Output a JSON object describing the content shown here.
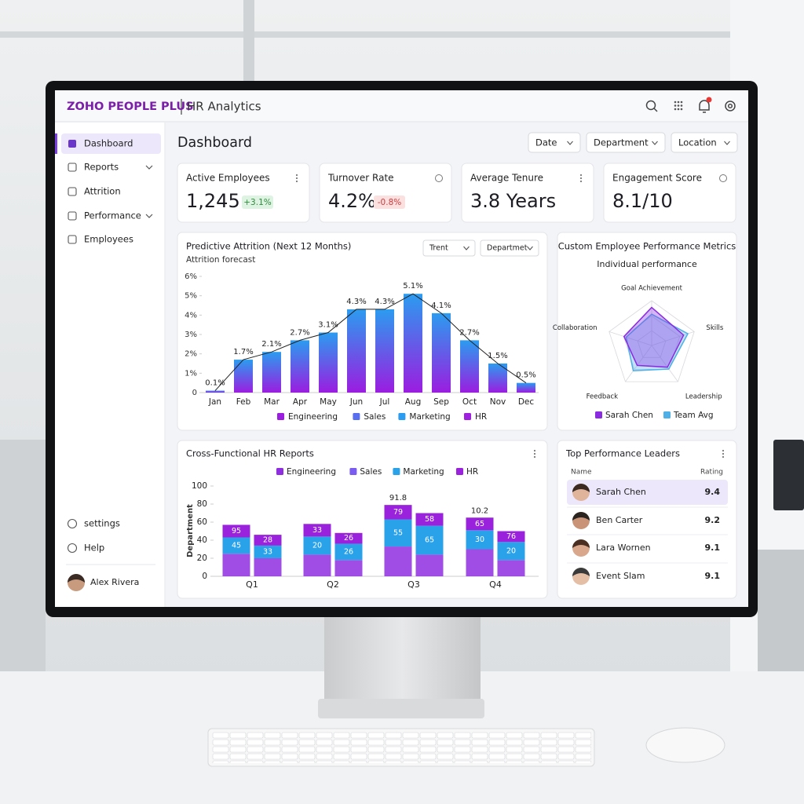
{
  "header": {
    "brand": "ZOHO PEOPLE PLUS",
    "product": "HR Analytics"
  },
  "sidebar": {
    "items": [
      "Dashboard",
      "Reports",
      "Attrition",
      "Performance",
      "Employees"
    ],
    "footer": [
      "settings",
      "Help"
    ],
    "user": "Alex Rivera"
  },
  "page": {
    "title": "Dashboard",
    "filters": [
      "Date",
      "Department",
      "Location"
    ]
  },
  "kpis": [
    {
      "label": "Active Employees",
      "value": "1,245",
      "delta": "+3.1%"
    },
    {
      "label": "Turnover Rate",
      "value": "4.2%",
      "delta": "-0.8%"
    },
    {
      "label": "Average Tenure",
      "value": "3.8 Years"
    },
    {
      "label": "Engagement Score",
      "value": "8.1/10"
    }
  ],
  "attrition": {
    "type": "bar",
    "title": "Predictive Attrition (Next 12 Months)",
    "subtitle": "Attrition forecast",
    "controls": [
      "Trent",
      "Departmet"
    ],
    "categories": [
      "Jan",
      "Feb",
      "Mar",
      "Apr",
      "May",
      "Jun",
      "Jul",
      "Aug",
      "Sep",
      "Oct",
      "Nov",
      "Dec"
    ],
    "values": [
      0.1,
      1.7,
      2.1,
      2.7,
      3.1,
      4.3,
      4.3,
      5.1,
      4.1,
      2.7,
      1.5,
      0.5
    ],
    "value_labels": [
      "0.1%",
      "1.7%",
      "2.1%",
      "2.7%",
      "3.1%",
      "4.3%",
      "4.3%",
      "5.1%",
      "4.1%",
      "2.7%",
      "1.5%",
      "0.5%"
    ],
    "gradient": [
      "#2b9cf0",
      "#9b1de0"
    ],
    "line_color": "#222222",
    "ylim": [
      0,
      6
    ],
    "yticks": [
      0,
      {
        "value": 1,
        "label": "1%"
      },
      {
        "value": 2,
        "label": "2%"
      },
      {
        "value": 3,
        "label": "3%"
      },
      {
        "value": 4,
        "label": "4%"
      },
      {
        "value": 5,
        "label": "5%"
      },
      {
        "value": 6,
        "label": "6%"
      }
    ],
    "legend": [
      {
        "name": "Engineering",
        "color": "#9b1de0"
      },
      {
        "name": "Sales",
        "color": "#5a6ff0"
      },
      {
        "name": "Marketing",
        "color": "#2b9cf0"
      },
      {
        "name": "HR",
        "color": "#a020e0"
      }
    ]
  },
  "performance": {
    "type": "radar",
    "title": "Custom Employee Performance Metrics",
    "subtitle": "Individual performance",
    "axes": [
      "Goal Achievement",
      "Skills",
      "Leadership",
      "Feedback",
      "Collaboration"
    ],
    "rlim": [
      0,
      10
    ],
    "series": [
      {
        "name": "Sarah Chen",
        "color": "#8a2be2",
        "values": [
          8.5,
          7.5,
          6,
          5.5,
          6.5
        ]
      },
      {
        "name": "Team Avg",
        "color": "#4fb0e8",
        "values": [
          7,
          8.5,
          6.5,
          7,
          6
        ]
      }
    ]
  },
  "reports": {
    "type": "stacked_bar",
    "title": "Cross-Functional HR Reports",
    "y_label": "Department",
    "categories": [
      "Q1",
      null,
      "Q2",
      null,
      "Q3",
      null,
      "Q4",
      null
    ],
    "ylim": [
      0,
      100
    ],
    "yticks": [
      0,
      20,
      40,
      60,
      80,
      100
    ],
    "series": [
      {
        "name": "Engineering",
        "color": "#8e2ee0",
        "values": [
          25,
          20,
          24,
          18,
          33,
          24,
          30,
          18
        ]
      },
      {
        "name": "Sales",
        "color": "#7a5cf0",
        "values": [
          null,
          null,
          null,
          null,
          null,
          null,
          null,
          null
        ]
      },
      {
        "name": "Marketing",
        "color": "#2aa2ea",
        "values": [
          18,
          14,
          20,
          18,
          30,
          32,
          21,
          20
        ],
        "labels": [
          45,
          33,
          20,
          26,
          55,
          65,
          30,
          20
        ]
      },
      {
        "name": "HR",
        "color": "#9a22dc",
        "values": [
          14,
          12,
          14,
          12,
          16,
          14,
          14,
          12
        ],
        "labels": [
          95,
          28,
          33,
          26,
          79,
          58,
          65,
          76
        ]
      }
    ],
    "annotations": [
      null,
      null,
      null,
      null,
      91.8,
      null,
      10.2,
      null
    ]
  },
  "leaders": {
    "title": "Top Performance Leaders",
    "columns": [
      "Name",
      "Rating"
    ],
    "rows": [
      [
        "Sarah Chen",
        "9.4"
      ],
      [
        "Ben Carter",
        "9.2"
      ],
      [
        "Lara Wornen",
        "9.1"
      ],
      [
        "Event Slam",
        "9.1"
      ]
    ]
  }
}
